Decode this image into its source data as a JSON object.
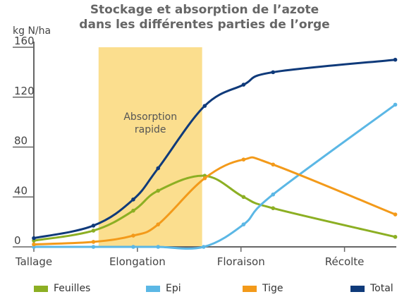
{
  "title_line1": "Stockage et absorption de l’azote",
  "title_line2": "dans les différentes parties de l’orge",
  "chart_data": {
    "type": "line",
    "ylabel": "kg N/ha",
    "ylim": [
      0,
      160
    ],
    "yticks": [
      0,
      40,
      80,
      120,
      160
    ],
    "xlim": [
      0,
      7
    ],
    "categories": [
      {
        "label": "Tallage",
        "x": 0
      },
      {
        "label": "Elongation",
        "x": 2
      },
      {
        "label": "Floraison",
        "x": 4
      },
      {
        "label": "Récolte",
        "x": 6
      }
    ],
    "shaded_region": {
      "x_start": 1.25,
      "x_end": 3.25,
      "label_line1": "Absorption",
      "label_line2": "rapide",
      "color": "#FBDE8E"
    },
    "grid": false,
    "legend_position": "bottom",
    "series": [
      {
        "name": "Feuilles",
        "color": "#8CAF23",
        "x": [
          0,
          1.15,
          1.92,
          2.4,
          3.3,
          4.05,
          4.62,
          6.98
        ],
        "y": [
          5,
          13,
          29,
          45,
          57,
          40,
          31,
          8
        ]
      },
      {
        "name": "Epi",
        "color": "#5BB7E5",
        "x": [
          0,
          1.15,
          1.92,
          2.4,
          3.28,
          4.05,
          4.62,
          6.98
        ],
        "y": [
          0,
          0,
          0,
          0,
          0,
          18,
          42,
          114
        ]
      },
      {
        "name": "Tige",
        "color": "#F39A1A",
        "x": [
          0,
          1.15,
          1.92,
          2.4,
          3.3,
          4.05,
          4.62,
          6.98
        ],
        "y": [
          2,
          4,
          9,
          18,
          55,
          70,
          66,
          26
        ]
      },
      {
        "name": "Total",
        "color": "#0F3A7A",
        "x": [
          0,
          1.15,
          1.92,
          2.4,
          3.3,
          4.05,
          4.62,
          6.98
        ],
        "y": [
          7,
          17,
          38,
          63,
          113,
          130,
          140,
          150
        ]
      }
    ]
  }
}
